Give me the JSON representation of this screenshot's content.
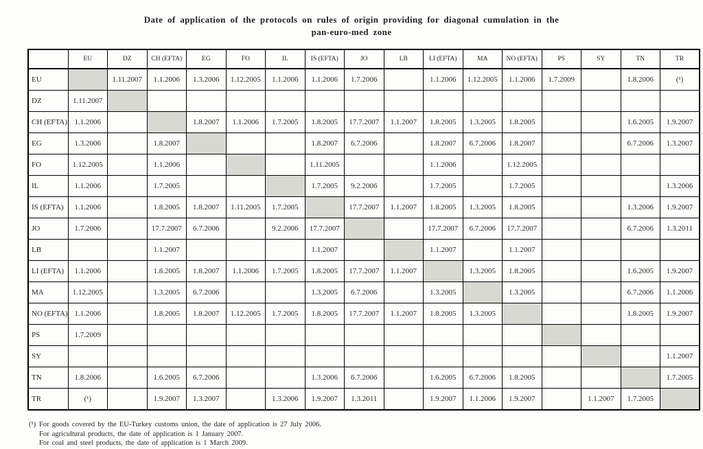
{
  "title": {
    "line1": "Date of application of the protocols on rules of origin providing for diagonal cumulation in the",
    "line2": "pan-euro-med zone"
  },
  "table": {
    "diagonal_fill": "#d9d9d4",
    "columns": [
      "",
      "EU",
      "DZ",
      "CH (EFTA)",
      "EG",
      "FO",
      "IL",
      "IS (EFTA)",
      "JO",
      "LB",
      "LI (EFTA)",
      "MA",
      "NO (EFTA)",
      "PS",
      "SY",
      "TN",
      "TR"
    ],
    "rows": [
      {
        "label": "EU",
        "cells": [
          "",
          "1.11.2007",
          "1.1.2006",
          "1.3.2006",
          "1.12.2005",
          "1.1.2006",
          "1.1.2006",
          "1.7.2006",
          "",
          "1.1.2006",
          "1.12.2005",
          "1.1.2006",
          "1.7.2009",
          "",
          "1.8.2006",
          "(¹)"
        ]
      },
      {
        "label": "DZ",
        "cells": [
          "1.11.2007",
          "",
          "",
          "",
          "",
          "",
          "",
          "",
          "",
          "",
          "",
          "",
          "",
          "",
          "",
          ""
        ]
      },
      {
        "label": "CH (EFTA)",
        "cells": [
          "1.1.2006",
          "",
          "",
          "1.8.2007",
          "1.1.2006",
          "1.7.2005",
          "1.8.2005",
          "17.7.2007",
          "1.1.2007",
          "1.8.2005",
          "1.3.2005",
          "1.8.2005",
          "",
          "",
          "1.6.2005",
          "1.9.2007"
        ]
      },
      {
        "label": "EG",
        "cells": [
          "1.3.2006",
          "",
          "1.8.2007",
          "",
          "",
          "",
          "1.8.2007",
          "6.7.2006",
          "",
          "1.8.2007",
          "6.7.2006",
          "1.8.2007",
          "",
          "",
          "6.7.2006",
          "1.3.2007"
        ]
      },
      {
        "label": "FO",
        "cells": [
          "1.12.2005",
          "",
          "1.1.2006",
          "",
          "",
          "",
          "1.11.2005",
          "",
          "",
          "1.1.2006",
          "",
          "1.12.2005",
          "",
          "",
          "",
          ""
        ]
      },
      {
        "label": "IL",
        "cells": [
          "1.1.2006",
          "",
          "1.7.2005",
          "",
          "",
          "",
          "1.7.2005",
          "9.2.2006",
          "",
          "1.7.2005",
          "",
          "1.7.2005",
          "",
          "",
          "",
          "1.3.2006"
        ]
      },
      {
        "label": "IS (EFTA)",
        "cells": [
          "1.1.2006",
          "",
          "1.8.2005",
          "1.8.2007",
          "1.11.2005",
          "1.7.2005",
          "",
          "17.7.2007",
          "1.1.2007",
          "1.8.2005",
          "1.3.2005",
          "1.8.2005",
          "",
          "",
          "1.3.2006",
          "1.9.2007"
        ]
      },
      {
        "label": "JO",
        "cells": [
          "1.7.2006",
          "",
          "17.7.2007",
          "6.7.2006",
          "",
          "9.2.2006",
          "17.7.2007",
          "",
          "",
          "17.7.2007",
          "6.7.2006",
          "17.7.2007",
          "",
          "",
          "6.7.2006",
          "1.3.2011"
        ]
      },
      {
        "label": "LB",
        "cells": [
          "",
          "",
          "1.1.2007",
          "",
          "",
          "",
          "1.1.2007",
          "",
          "",
          "1.1.2007",
          "",
          "1.1.2007",
          "",
          "",
          "",
          ""
        ]
      },
      {
        "label": "LI (EFTA)",
        "cells": [
          "1.1.2006",
          "",
          "1.8.2005",
          "1.8.2007",
          "1.1.2006",
          "1.7.2005",
          "1.8.2005",
          "17.7.2007",
          "1.1.2007",
          "",
          "1.3.2005",
          "1.8.2005",
          "",
          "",
          "1.6.2005",
          "1.9.2007"
        ]
      },
      {
        "label": "MA",
        "cells": [
          "1.12.2005",
          "",
          "1.3.2005",
          "6.7.2006",
          "",
          "",
          "1.3.2005",
          "6.7.2006",
          "",
          "1.3.2005",
          "",
          "1.3.2005",
          "",
          "",
          "6.7.2006",
          "1.1.2006"
        ]
      },
      {
        "label": "NO (EFTA)",
        "cells": [
          "1.1.2006",
          "",
          "1.8.2005",
          "1.8.2007",
          "1.12.2005",
          "1.7.2005",
          "1.8.2005",
          "17.7.2007",
          "1.1.2007",
          "1.8.2005",
          "1.3.2005",
          "",
          "",
          "",
          "1.8.2005",
          "1.9.2007"
        ]
      },
      {
        "label": "PS",
        "cells": [
          "1.7.2009",
          "",
          "",
          "",
          "",
          "",
          "",
          "",
          "",
          "",
          "",
          "",
          "",
          "",
          "",
          ""
        ]
      },
      {
        "label": "SY",
        "cells": [
          "",
          "",
          "",
          "",
          "",
          "",
          "",
          "",
          "",
          "",
          "",
          "",
          "",
          "",
          "",
          "1.1.2007"
        ]
      },
      {
        "label": "TN",
        "cells": [
          "1.8.2006",
          "",
          "1.6.2005",
          "6.7.2006",
          "",
          "",
          "1.3.2006",
          "6.7.2006",
          "",
          "1.6.2005",
          "6.7.2006",
          "1.8.2005",
          "",
          "",
          "",
          "1.7.2005"
        ]
      },
      {
        "label": "TR",
        "cells": [
          "(¹)",
          "",
          "1.9.2007",
          "1.3.2007",
          "",
          "1.3.2006",
          "1.9.2007",
          "1.3.2011",
          "",
          "1.9.2007",
          "1.1.2006",
          "1.9.2007",
          "",
          "1.1.2007",
          "1.7.2005",
          ""
        ]
      }
    ]
  },
  "footnotes": {
    "marker": "(¹)",
    "lines": [
      "For goods covered by the EU-Turkey customs union, the date of application is 27 July 2006.",
      "For agricultural products, the date of application is 1 January 2007.",
      "For coal and steel products, the date of application is 1 March 2009."
    ]
  }
}
